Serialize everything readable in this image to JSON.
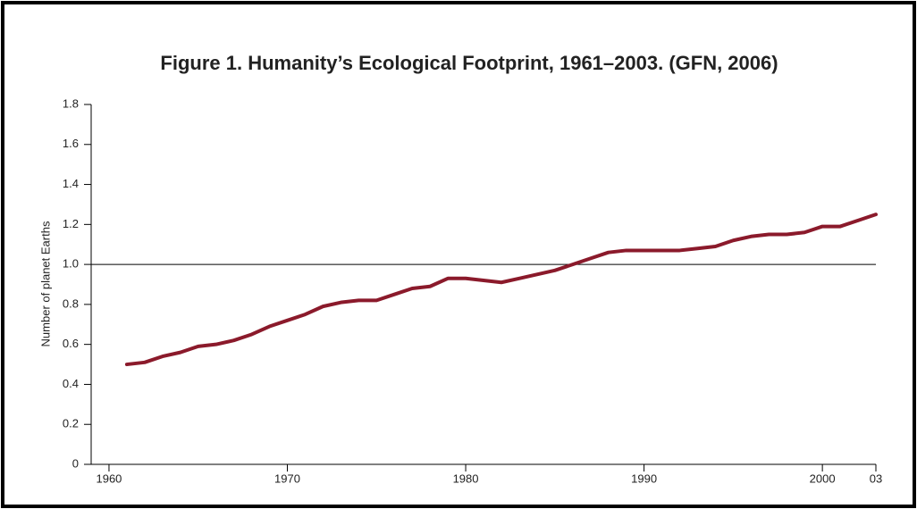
{
  "chart_data": {
    "type": "line",
    "title": "Figure 1. Humanity’s Ecological Footprint, 1961–2003. (GFN, 2006)",
    "y_label": "Number of planet Earths",
    "x": [
      1961,
      1962,
      1963,
      1964,
      1965,
      1966,
      1967,
      1968,
      1969,
      1970,
      1971,
      1972,
      1973,
      1974,
      1975,
      1976,
      1977,
      1978,
      1979,
      1980,
      1981,
      1982,
      1983,
      1984,
      1985,
      1986,
      1987,
      1988,
      1989,
      1990,
      1991,
      1992,
      1993,
      1994,
      1995,
      1996,
      1997,
      1998,
      1999,
      2000,
      2001,
      2002,
      2003
    ],
    "values": [
      0.5,
      0.51,
      0.54,
      0.56,
      0.59,
      0.6,
      0.62,
      0.65,
      0.69,
      0.72,
      0.75,
      0.79,
      0.81,
      0.82,
      0.82,
      0.85,
      0.88,
      0.89,
      0.93,
      0.93,
      0.92,
      0.91,
      0.93,
      0.95,
      0.97,
      1.0,
      1.03,
      1.06,
      1.07,
      1.07,
      1.07,
      1.07,
      1.08,
      1.09,
      1.12,
      1.14,
      1.15,
      1.15,
      1.16,
      1.19,
      1.19,
      1.22,
      1.25
    ],
    "color": "#8b1a2b",
    "xlim": [
      1959,
      2003
    ],
    "xticks": [
      1960,
      1970,
      1980,
      1990,
      2000,
      {
        "value": 2003,
        "label": "03"
      }
    ],
    "ylim": [
      0,
      1.8
    ],
    "yticks": [
      0,
      0.2,
      0.4,
      0.6,
      0.8,
      {
        "value": 1,
        "label": "1.0"
      },
      1.2,
      1.4,
      1.6,
      1.8
    ],
    "reference_line": 1
  }
}
